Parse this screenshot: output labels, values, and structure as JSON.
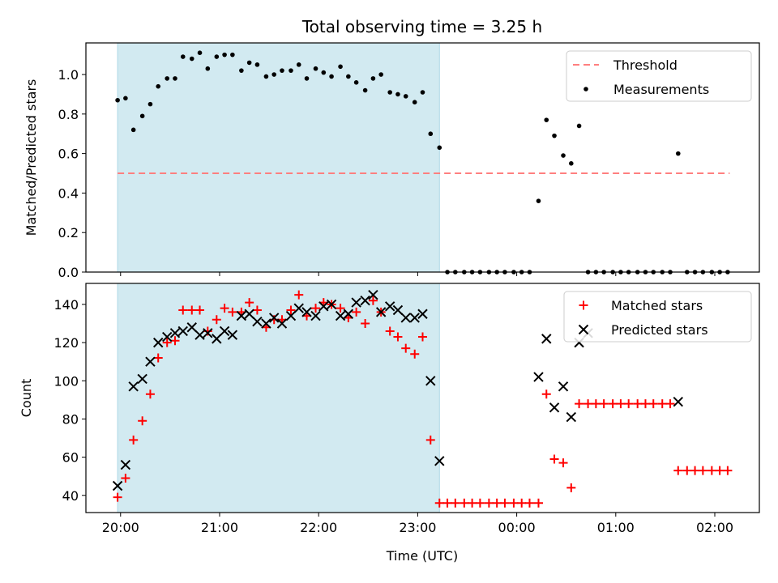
{
  "chart_data": {
    "title": "Total observing time = 3.25 h",
    "xlabel": "Time (UTC)",
    "x_ticks": [
      "20:00",
      "21:00",
      "22:00",
      "23:00",
      "00:00",
      "01:00",
      "02:00"
    ],
    "x_tick_hours": [
      20,
      21,
      22,
      23,
      24,
      25,
      26
    ],
    "xlim": [
      19.65,
      26.45
    ],
    "shaded_region": [
      19.97,
      23.22
    ],
    "colors": {
      "shade": "#add8e6",
      "threshold": "#ff7f7f",
      "measurements": "#000000",
      "matched": "#ff0000",
      "predicted": "#000000"
    },
    "panels": [
      {
        "type": "scatter",
        "ylabel": "Matched/Predicted stars",
        "ylim": [
          0,
          1.16
        ],
        "y_ticks": [
          "0.0",
          "0.2",
          "0.4",
          "0.6",
          "0.8",
          "1.0"
        ],
        "y_tick_values": [
          0,
          0.2,
          0.4,
          0.6,
          0.8,
          1.0
        ],
        "legend_position": "upper right",
        "threshold": {
          "name": "Threshold",
          "y": 0.5,
          "x_range": [
            19.97,
            26.15
          ]
        },
        "series": [
          {
            "name": "Measurements",
            "marker": "dot",
            "x": [
              19.97,
              20.05,
              20.13,
              20.22,
              20.3,
              20.38,
              20.47,
              20.55,
              20.63,
              20.72,
              20.8,
              20.88,
              20.97,
              21.05,
              21.13,
              21.22,
              21.3,
              21.38,
              21.47,
              21.55,
              21.63,
              21.72,
              21.8,
              21.88,
              21.97,
              22.05,
              22.13,
              22.22,
              22.3,
              22.38,
              22.47,
              22.55,
              22.63,
              22.72,
              22.8,
              22.88,
              22.97,
              23.05,
              23.13,
              23.22,
              23.3,
              23.38,
              23.47,
              23.55,
              23.63,
              23.72,
              23.8,
              23.88,
              23.97,
              24.05,
              24.13,
              24.22,
              24.3,
              24.38,
              24.47,
              24.55,
              24.63,
              24.72,
              24.8,
              24.88,
              24.97,
              25.05,
              25.13,
              25.22,
              25.3,
              25.38,
              25.47,
              25.55,
              25.63,
              25.72,
              25.8,
              25.88,
              25.97,
              26.05,
              26.13
            ],
            "y": [
              0.87,
              0.88,
              0.72,
              0.79,
              0.85,
              0.94,
              0.98,
              0.98,
              1.09,
              1.08,
              1.11,
              1.03,
              1.09,
              1.1,
              1.1,
              1.02,
              1.06,
              1.05,
              0.99,
              1.0,
              1.02,
              1.02,
              1.05,
              0.98,
              1.03,
              1.01,
              0.99,
              1.04,
              0.99,
              0.96,
              0.92,
              0.98,
              1.0,
              0.91,
              0.9,
              0.89,
              0.86,
              0.91,
              0.7,
              0.63,
              0,
              0,
              0,
              0,
              0,
              0,
              0,
              0,
              0,
              0,
              0,
              0.36,
              0.77,
              0.69,
              0.59,
              0.55,
              0.74,
              0,
              0,
              0,
              0,
              0,
              0,
              0,
              0,
              0,
              0,
              0,
              0.6,
              0,
              0,
              0,
              0,
              0,
              0
            ]
          }
        ]
      },
      {
        "type": "scatter",
        "ylabel": "Count",
        "ylim": [
          31,
          151
        ],
        "y_ticks": [
          "40",
          "60",
          "80",
          "100",
          "120",
          "140"
        ],
        "y_tick_values": [
          40,
          60,
          80,
          100,
          120,
          140
        ],
        "legend_position": "upper right",
        "series": [
          {
            "name": "Matched stars",
            "marker": "plus",
            "x": [
              19.97,
              20.05,
              20.13,
              20.22,
              20.3,
              20.38,
              20.47,
              20.55,
              20.63,
              20.72,
              20.8,
              20.88,
              20.97,
              21.05,
              21.13,
              21.22,
              21.3,
              21.38,
              21.47,
              21.55,
              21.63,
              21.72,
              21.8,
              21.88,
              21.97,
              22.05,
              22.13,
              22.22,
              22.3,
              22.38,
              22.47,
              22.55,
              22.63,
              22.72,
              22.8,
              22.88,
              22.97,
              23.05,
              23.13,
              23.22,
              23.3,
              23.38,
              23.47,
              23.55,
              23.63,
              23.72,
              23.8,
              23.88,
              23.97,
              24.05,
              24.13,
              24.22,
              24.3,
              24.38,
              24.47,
              24.55,
              24.63,
              24.72,
              24.8,
              24.88,
              24.97,
              25.05,
              25.13,
              25.22,
              25.3,
              25.38,
              25.47,
              25.55,
              25.63,
              25.72,
              25.8,
              25.88,
              25.97,
              26.05,
              26.13
            ],
            "y": [
              39,
              49,
              69,
              79,
              93,
              112,
              120,
              121,
              137,
              137,
              137,
              126,
              132,
              138,
              136,
              136,
              141,
              137,
              128,
              132,
              132,
              137,
              145,
              134,
              138,
              141,
              140,
              138,
              133,
              136,
              130,
              142,
              136,
              126,
              123,
              117,
              114,
              123,
              69,
              36,
              36,
              36,
              36,
              36,
              36,
              36,
              36,
              36,
              36,
              36,
              36,
              36,
              93,
              59,
              57,
              44,
              88,
              88,
              88,
              88,
              88,
              88,
              88,
              88,
              88,
              88,
              88,
              88,
              53,
              53,
              53,
              53,
              53,
              53,
              53
            ]
          },
          {
            "name": "Predicted stars",
            "marker": "x",
            "x": [
              19.97,
              20.05,
              20.13,
              20.22,
              20.3,
              20.38,
              20.47,
              20.55,
              20.63,
              20.72,
              20.8,
              20.88,
              20.97,
              21.05,
              21.13,
              21.22,
              21.3,
              21.38,
              21.47,
              21.55,
              21.63,
              21.72,
              21.8,
              21.88,
              21.97,
              22.05,
              22.13,
              22.22,
              22.3,
              22.38,
              22.47,
              22.55,
              22.63,
              22.72,
              22.8,
              22.88,
              22.97,
              23.05,
              23.13,
              23.22,
              24.22,
              24.3,
              24.38,
              24.47,
              24.55,
              24.63,
              24.72,
              25.63
            ],
            "y": [
              45,
              56,
              97,
              101,
              110,
              120,
              123,
              125,
              126,
              128,
              124,
              125,
              122,
              126,
              124,
              134,
              135,
              131,
              130,
              133,
              130,
              134,
              138,
              136,
              134,
              139,
              140,
              134,
              135,
              141,
              142,
              145,
              136,
              139,
              137,
              133,
              133,
              135,
              100,
              58,
              102,
              122,
              86,
              97,
              81,
              120,
              125,
              89
            ]
          }
        ]
      }
    ]
  }
}
